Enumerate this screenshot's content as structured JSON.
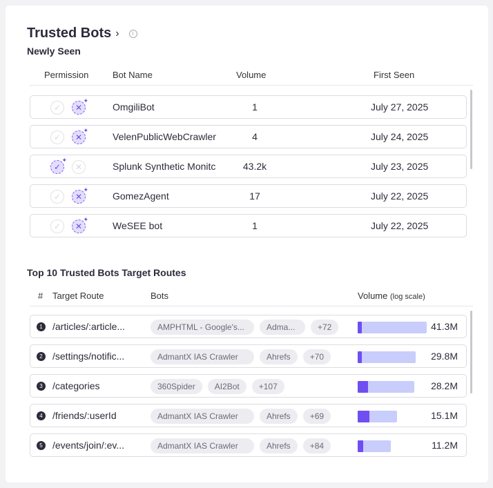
{
  "header": {
    "title": "Trusted Bots",
    "chevron": "›",
    "info": "i"
  },
  "newly_seen": {
    "title": "Newly Seen",
    "columns": [
      "Permission",
      "Bot Name",
      "Volume",
      "First Seen"
    ],
    "rows": [
      {
        "permission": "deny",
        "name": "OmgiliBot",
        "volume": "1",
        "first_seen": "July 27, 2025"
      },
      {
        "permission": "deny",
        "name": "VelenPublicWebCrawler",
        "volume": "4",
        "first_seen": "July 24, 2025"
      },
      {
        "permission": "allow",
        "name": "Splunk Synthetic Monitc",
        "volume": "43.2k",
        "first_seen": "July 23, 2025"
      },
      {
        "permission": "deny",
        "name": "GomezAgent",
        "volume": "17",
        "first_seen": "July 22, 2025"
      },
      {
        "permission": "deny",
        "name": "WeSEE bot",
        "volume": "1",
        "first_seen": "July 22, 2025"
      }
    ]
  },
  "routes": {
    "title": "Top 10 Trusted Bots Target Routes",
    "columns": [
      "#",
      "Target Route",
      "Bots",
      "Volume"
    ],
    "volume_note": "(log scale)",
    "rows": [
      {
        "rank": "1",
        "route": "/articles/:article...",
        "bots": [
          "AMPHTML - Google's...",
          "Adma...",
          "+72"
        ],
        "volume": "41.3M",
        "bar_fraction": 1.0,
        "inner_fraction": 0.06
      },
      {
        "rank": "2",
        "route": "/settings/notific...",
        "bots": [
          "AdmantX IAS Crawler",
          "Ahrefs",
          "+70"
        ],
        "volume": "29.8M",
        "bar_fraction": 0.84,
        "inner_fraction": 0.07
      },
      {
        "rank": "3",
        "route": "/categories",
        "bots": [
          "360Spider",
          "AI2Bot",
          "+107"
        ],
        "volume": "28.2M",
        "bar_fraction": 0.82,
        "inner_fraction": 0.18
      },
      {
        "rank": "4",
        "route": "/friends/:userId",
        "bots": [
          "AdmantX IAS Crawler",
          "Ahrefs",
          "+69"
        ],
        "volume": "15.1M",
        "bar_fraction": 0.57,
        "inner_fraction": 0.3
      },
      {
        "rank": "5",
        "route": "/events/join/:ev...",
        "bots": [
          "AdmantX IAS Crawler",
          "Ahrefs",
          "+84"
        ],
        "volume": "11.2M",
        "bar_fraction": 0.48,
        "inner_fraction": 0.17
      }
    ]
  },
  "colors": {
    "accent": "#6f4ef2",
    "bar_bg": "#c9cdfb"
  }
}
